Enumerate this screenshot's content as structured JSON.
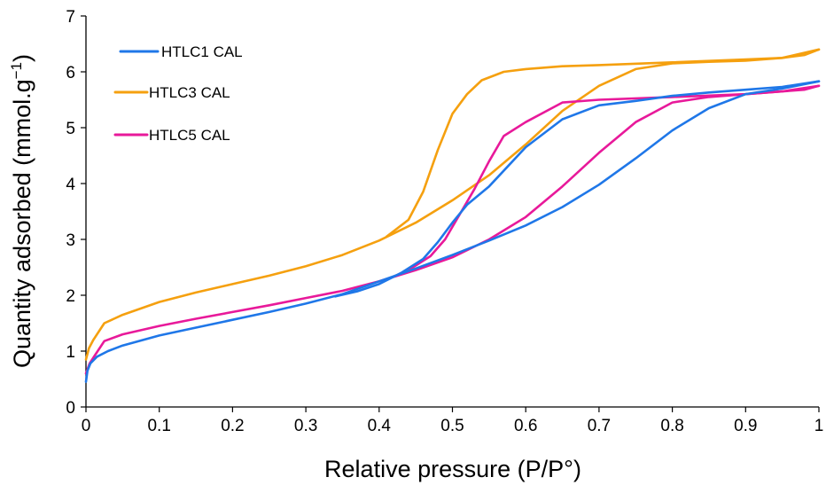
{
  "chart_data": {
    "type": "line",
    "title": "",
    "xlabel": "Relative pressure (P/P°)",
    "ylabel_parts": {
      "main": "Quantity adsorbed (mmol.g",
      "sup": "−1",
      "end": ")"
    },
    "xlim": [
      0,
      1
    ],
    "ylim": [
      0,
      7
    ],
    "x_ticks": [
      "0",
      "0.1",
      "0.2",
      "0.3",
      "0.4",
      "0.5",
      "0.6",
      "0.7",
      "0.8",
      "0.9",
      "1"
    ],
    "y_ticks": [
      "0",
      "1",
      "2",
      "3",
      "4",
      "5",
      "6",
      "7"
    ],
    "grid": false,
    "legend_position": "top-left",
    "series": [
      {
        "name": "HTLC1 CAL",
        "color": "#1f77e8",
        "adsorption": [
          [
            0,
            0.45
          ],
          [
            0.002,
            0.65
          ],
          [
            0.006,
            0.78
          ],
          [
            0.015,
            0.9
          ],
          [
            0.03,
            1.0
          ],
          [
            0.05,
            1.1
          ],
          [
            0.1,
            1.28
          ],
          [
            0.15,
            1.42
          ],
          [
            0.2,
            1.56
          ],
          [
            0.25,
            1.7
          ],
          [
            0.3,
            1.85
          ],
          [
            0.35,
            2.02
          ],
          [
            0.4,
            2.25
          ],
          [
            0.45,
            2.48
          ],
          [
            0.5,
            2.72
          ],
          [
            0.55,
            2.98
          ],
          [
            0.6,
            3.25
          ],
          [
            0.65,
            3.58
          ],
          [
            0.7,
            3.98
          ],
          [
            0.75,
            4.45
          ],
          [
            0.8,
            4.95
          ],
          [
            0.85,
            5.35
          ],
          [
            0.9,
            5.6
          ],
          [
            0.95,
            5.7
          ],
          [
            1.0,
            5.83
          ]
        ],
        "desorption": [
          [
            1.0,
            5.83
          ],
          [
            0.95,
            5.73
          ],
          [
            0.9,
            5.68
          ],
          [
            0.85,
            5.63
          ],
          [
            0.8,
            5.57
          ],
          [
            0.75,
            5.48
          ],
          [
            0.7,
            5.4
          ],
          [
            0.65,
            5.15
          ],
          [
            0.6,
            4.65
          ],
          [
            0.55,
            3.95
          ],
          [
            0.52,
            3.62
          ],
          [
            0.5,
            3.3
          ],
          [
            0.48,
            2.95
          ],
          [
            0.46,
            2.65
          ],
          [
            0.43,
            2.4
          ],
          [
            0.4,
            2.2
          ],
          [
            0.37,
            2.07
          ],
          [
            0.34,
            1.98
          ]
        ]
      },
      {
        "name": "HTLC3 CAL",
        "color": "#f5a00f",
        "adsorption": [
          [
            0,
            0.85
          ],
          [
            0.004,
            1.05
          ],
          [
            0.01,
            1.2
          ],
          [
            0.025,
            1.5
          ],
          [
            0.05,
            1.65
          ],
          [
            0.1,
            1.88
          ],
          [
            0.15,
            2.05
          ],
          [
            0.2,
            2.2
          ],
          [
            0.25,
            2.35
          ],
          [
            0.3,
            2.52
          ],
          [
            0.35,
            2.72
          ],
          [
            0.4,
            2.98
          ],
          [
            0.45,
            3.3
          ],
          [
            0.5,
            3.7
          ],
          [
            0.55,
            4.15
          ],
          [
            0.6,
            4.7
          ],
          [
            0.65,
            5.3
          ],
          [
            0.7,
            5.75
          ],
          [
            0.75,
            6.05
          ],
          [
            0.8,
            6.15
          ],
          [
            0.85,
            6.18
          ],
          [
            0.9,
            6.2
          ],
          [
            0.95,
            6.25
          ],
          [
            0.98,
            6.3
          ],
          [
            1.0,
            6.4
          ]
        ],
        "desorption": [
          [
            1.0,
            6.4
          ],
          [
            0.95,
            6.25
          ],
          [
            0.9,
            6.22
          ],
          [
            0.8,
            6.17
          ],
          [
            0.7,
            6.12
          ],
          [
            0.65,
            6.1
          ],
          [
            0.6,
            6.05
          ],
          [
            0.57,
            6.0
          ],
          [
            0.54,
            5.85
          ],
          [
            0.52,
            5.6
          ],
          [
            0.5,
            5.25
          ],
          [
            0.48,
            4.6
          ],
          [
            0.46,
            3.85
          ],
          [
            0.44,
            3.35
          ],
          [
            0.41,
            3.05
          ]
        ]
      },
      {
        "name": "HTLC5 CAL",
        "color": "#e8199a",
        "adsorption": [
          [
            0,
            0.6
          ],
          [
            0.005,
            0.78
          ],
          [
            0.012,
            0.92
          ],
          [
            0.025,
            1.18
          ],
          [
            0.05,
            1.3
          ],
          [
            0.1,
            1.45
          ],
          [
            0.15,
            1.58
          ],
          [
            0.2,
            1.7
          ],
          [
            0.25,
            1.82
          ],
          [
            0.3,
            1.95
          ],
          [
            0.35,
            2.08
          ],
          [
            0.4,
            2.25
          ],
          [
            0.45,
            2.45
          ],
          [
            0.5,
            2.68
          ],
          [
            0.55,
            3.0
          ],
          [
            0.6,
            3.4
          ],
          [
            0.65,
            3.95
          ],
          [
            0.7,
            4.55
          ],
          [
            0.75,
            5.1
          ],
          [
            0.8,
            5.45
          ],
          [
            0.85,
            5.55
          ],
          [
            0.9,
            5.6
          ],
          [
            0.95,
            5.65
          ],
          [
            0.98,
            5.68
          ],
          [
            1.0,
            5.75
          ]
        ],
        "desorption": [
          [
            1.0,
            5.75
          ],
          [
            0.95,
            5.65
          ],
          [
            0.9,
            5.6
          ],
          [
            0.8,
            5.55
          ],
          [
            0.7,
            5.5
          ],
          [
            0.65,
            5.45
          ],
          [
            0.6,
            5.1
          ],
          [
            0.57,
            4.85
          ],
          [
            0.55,
            4.4
          ],
          [
            0.53,
            3.9
          ],
          [
            0.51,
            3.45
          ],
          [
            0.49,
            3.0
          ],
          [
            0.47,
            2.7
          ],
          [
            0.44,
            2.45
          ],
          [
            0.41,
            2.28
          ]
        ]
      }
    ]
  }
}
